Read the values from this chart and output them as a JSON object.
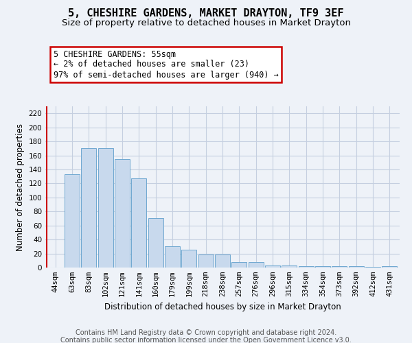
{
  "title": "5, CHESHIRE GARDENS, MARKET DRAYTON, TF9 3EF",
  "subtitle": "Size of property relative to detached houses in Market Drayton",
  "xlabel": "Distribution of detached houses by size in Market Drayton",
  "ylabel": "Number of detached properties",
  "footer_line1": "Contains HM Land Registry data © Crown copyright and database right 2024.",
  "footer_line2": "Contains public sector information licensed under the Open Government Licence v3.0.",
  "categories": [
    "44sqm",
    "63sqm",
    "83sqm",
    "102sqm",
    "121sqm",
    "141sqm",
    "160sqm",
    "179sqm",
    "199sqm",
    "218sqm",
    "238sqm",
    "257sqm",
    "276sqm",
    "296sqm",
    "315sqm",
    "334sqm",
    "354sqm",
    "373sqm",
    "392sqm",
    "412sqm",
    "431sqm"
  ],
  "values": [
    0,
    133,
    170,
    170,
    155,
    127,
    70,
    30,
    25,
    19,
    19,
    8,
    8,
    3,
    3,
    2,
    2,
    2,
    2,
    1,
    2
  ],
  "bar_color": "#c8d9ed",
  "bar_edge_color": "#6fa8d0",
  "highlight_color": "#cc0000",
  "ylim": [
    0,
    230
  ],
  "yticks": [
    0,
    20,
    40,
    60,
    80,
    100,
    120,
    140,
    160,
    180,
    200,
    220
  ],
  "annotation_line1": "5 CHESHIRE GARDENS: 55sqm",
  "annotation_line2": "← 2% of detached houses are smaller (23)",
  "annotation_line3": "97% of semi-detached houses are larger (940) →",
  "annotation_box_color": "#cc0000",
  "background_color": "#eef2f8",
  "plot_bg_color": "#eef2f8",
  "grid_color": "#c5cfe0",
  "title_fontsize": 11,
  "subtitle_fontsize": 9.5,
  "axis_label_fontsize": 8.5,
  "tick_fontsize": 7.5,
  "footer_fontsize": 7
}
